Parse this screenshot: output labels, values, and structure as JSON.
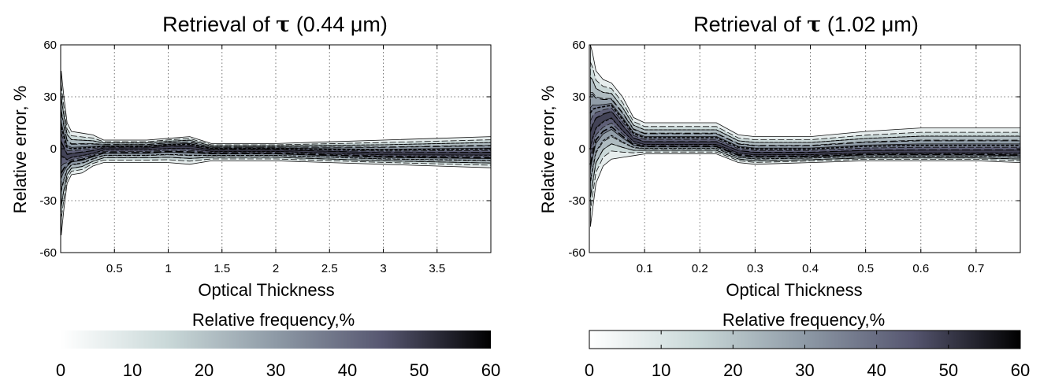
{
  "chart_data": [
    {
      "type": "heatmap",
      "title_prefix": "Retrieval of ",
      "title_symbol": "τ",
      "title_suffix": " (0.44 μm)",
      "xlabel": "Optical Thickness",
      "ylabel": "Relative error, %",
      "xlim": [
        0,
        4.0
      ],
      "ylim": [
        -60,
        60
      ],
      "x_ticks": [
        0.5,
        1,
        1.5,
        2,
        2.5,
        3,
        3.5
      ],
      "x_tick_labels": [
        "0.5",
        "1",
        "1.5",
        "2",
        "2.5",
        "3",
        "3.5"
      ],
      "y_ticks": [
        -60,
        -30,
        0,
        30,
        60
      ],
      "y_tick_labels": [
        "-60",
        "-30",
        "0",
        "30",
        "60"
      ],
      "grid": true,
      "colorbar": {
        "label": "Relative frequency,%",
        "range": [
          0,
          60
        ],
        "ticks": [
          0,
          10,
          20,
          30,
          40,
          50,
          60
        ],
        "tick_labels": [
          "0",
          "10",
          "20",
          "30",
          "40",
          "50",
          "60"
        ],
        "colors": [
          "#ffffff",
          "#c9d8d8",
          "#8e9aa6",
          "#565670",
          "#000000"
        ]
      },
      "envelope": {
        "x": [
          0.005,
          0.03,
          0.06,
          0.1,
          0.2,
          0.3,
          0.4,
          0.6,
          0.8,
          1.0,
          1.2,
          1.4,
          1.6,
          2.0,
          2.5,
          3.0,
          3.5,
          4.0
        ],
        "upper": [
          45,
          30,
          15,
          10,
          9,
          8,
          5,
          5,
          5,
          6,
          7,
          3,
          3,
          3,
          4,
          5,
          6,
          7
        ],
        "lower": [
          -50,
          -35,
          -20,
          -15,
          -14,
          -10,
          -8,
          -8,
          -8,
          -8,
          -9,
          -7,
          -7,
          -7,
          -8,
          -9,
          -10,
          -11
        ],
        "mode": [
          0,
          -2,
          -5,
          -4,
          -3,
          -2,
          0,
          0,
          0,
          1,
          1,
          -1,
          -1,
          -1,
          -2,
          -3,
          -3,
          -3
        ]
      }
    },
    {
      "type": "heatmap",
      "title_prefix": "Retrieval of ",
      "title_symbol": "τ",
      "title_suffix": " (1.02 μm)",
      "xlabel": "Optical Thickness",
      "ylabel": "Relative error, %",
      "xlim": [
        0,
        0.78
      ],
      "ylim": [
        -60,
        60
      ],
      "x_ticks": [
        0.1,
        0.2,
        0.3,
        0.4,
        0.5,
        0.6,
        0.7
      ],
      "x_tick_labels": [
        "0.1",
        "0.2",
        "0.3",
        "0.4",
        "0.5",
        "0.6",
        "0.7"
      ],
      "y_ticks": [
        -60,
        -30,
        0,
        30,
        60
      ],
      "y_tick_labels": [
        "-60",
        "-30",
        "0",
        "30",
        "60"
      ],
      "grid": true,
      "colorbar": {
        "label": "Relative frequency,%",
        "range": [
          0,
          60
        ],
        "ticks": [
          0,
          10,
          20,
          30,
          40,
          50,
          60
        ],
        "tick_labels": [
          "0",
          "10",
          "20",
          "30",
          "40",
          "50",
          "60"
        ],
        "colors": [
          "#ffffff",
          "#c9d8d8",
          "#8e9aa6",
          "#565670",
          "#000000"
        ]
      },
      "envelope": {
        "x": [
          0.002,
          0.006,
          0.012,
          0.025,
          0.04,
          0.06,
          0.08,
          0.1,
          0.15,
          0.2,
          0.23,
          0.27,
          0.3,
          0.4,
          0.5,
          0.6,
          0.7,
          0.78
        ],
        "upper": [
          60,
          55,
          45,
          40,
          38,
          30,
          18,
          15,
          15,
          15,
          15,
          8,
          7,
          7,
          10,
          12,
          12,
          12
        ],
        "lower": [
          -45,
          -35,
          -20,
          -10,
          -6,
          -5,
          -4,
          -3,
          -3,
          -3,
          -3,
          -8,
          -9,
          -8,
          -7,
          -7,
          -7,
          -8
        ],
        "mode": [
          5,
          10,
          15,
          18,
          20,
          12,
          5,
          3,
          3,
          3,
          3,
          -2,
          -3,
          -3,
          -2,
          -2,
          -2,
          -2
        ]
      }
    }
  ]
}
